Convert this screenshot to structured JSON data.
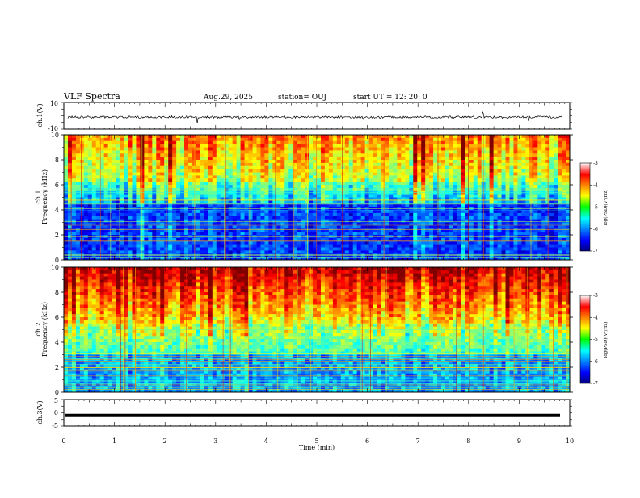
{
  "header": {
    "title": "VLF Spectra",
    "date": "Aug.29, 2025",
    "station": "station= OUJ",
    "start": "start  UT =   12: 20: 0"
  },
  "chart_data": [
    {
      "type": "line",
      "name": "ch1-waveform-panel",
      "ylabel": "ch.1(V)",
      "ylim": [
        -10,
        10
      ],
      "yticks": [
        "10",
        "-10"
      ],
      "xlim": [
        0,
        10
      ],
      "baseline": 0
    },
    {
      "type": "heatmap",
      "name": "ch1-spectrogram",
      "ylabel_line1": "ch.1",
      "ylabel_line2": "Frequency (kHz)",
      "ylim": [
        0,
        10
      ],
      "yticks": [
        "0",
        "2",
        "4",
        "6",
        "8",
        "10"
      ],
      "xlim": [
        0,
        10
      ],
      "colorbar": {
        "label": "log(PSD)(V²/Hz)",
        "range": [
          -7,
          -3
        ],
        "ticks": [
          "-3",
          "-4",
          "-5",
          "-6",
          "-7"
        ]
      }
    },
    {
      "type": "heatmap",
      "name": "ch2-spectrogram",
      "ylabel_line1": "ch.2",
      "ylabel_line2": "Frequency (kHz)",
      "ylim": [
        0,
        10
      ],
      "yticks": [
        "0",
        "2",
        "4",
        "6",
        "8",
        "10"
      ],
      "xlim": [
        0,
        10
      ],
      "colorbar": {
        "label": "log(PSD)(V²/Hz)",
        "range": [
          -7,
          -3
        ],
        "ticks": [
          "-3",
          "-4",
          "-5",
          "-6",
          "-7"
        ]
      }
    },
    {
      "type": "line",
      "name": "ch3-waveform-panel",
      "ylabel": "ch.3(V)",
      "ylim": [
        -5,
        5
      ],
      "yticks": [
        "5",
        "0",
        "-5"
      ],
      "xlim": [
        0,
        10
      ],
      "baseline": -1
    }
  ],
  "xaxis": {
    "label": "Time  (min)",
    "ticks": [
      "0",
      "1",
      "2",
      "3",
      "4",
      "5",
      "6",
      "7",
      "8",
      "9",
      "10"
    ]
  },
  "colors": {
    "low": "#00007f",
    "mid": "#00ff00",
    "high": "#ff0000",
    "trace": "#000000"
  }
}
